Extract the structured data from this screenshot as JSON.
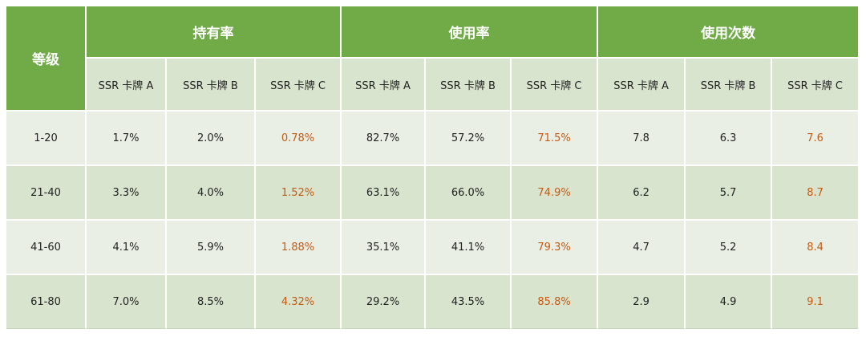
{
  "chart_data": {
    "type": "table",
    "row_header": "等级",
    "column_groups": [
      {
        "name": "持有率",
        "columns": [
          "SSR 卡牌 A",
          "SSR 卡牌 B",
          "SSR 卡牌 C"
        ]
      },
      {
        "name": "使用率",
        "columns": [
          "SSR 卡牌 A",
          "SSR 卡牌 B",
          "SSR 卡牌 C"
        ]
      },
      {
        "name": "使用次数",
        "columns": [
          "SSR 卡牌 A",
          "SSR 卡牌 B",
          "SSR 卡牌 C"
        ]
      }
    ],
    "rows": [
      {
        "level": "1-20",
        "values": [
          "1.7%",
          "2.0%",
          "0.78%",
          "82.7%",
          "57.2%",
          "71.5%",
          "7.8",
          "6.3",
          "7.6"
        ]
      },
      {
        "level": "21-40",
        "values": [
          "3.3%",
          "4.0%",
          "1.52%",
          "63.1%",
          "66.0%",
          "74.9%",
          "6.2",
          "5.7",
          "8.7"
        ]
      },
      {
        "level": "41-60",
        "values": [
          "4.1%",
          "5.9%",
          "1.88%",
          "35.1%",
          "41.1%",
          "79.3%",
          "4.7",
          "5.2",
          "8.4"
        ]
      },
      {
        "level": "61-80",
        "values": [
          "7.0%",
          "8.5%",
          "4.32%",
          "29.2%",
          "43.5%",
          "85.8%",
          "2.9",
          "4.9",
          "9.1"
        ]
      }
    ],
    "highlight_column": "SSR 卡牌 C",
    "colors": {
      "header_green": "#71ab48",
      "light_row": "#eaefe6",
      "dark_row": "#d9e4cf",
      "highlight_text": "#c55a11"
    }
  }
}
